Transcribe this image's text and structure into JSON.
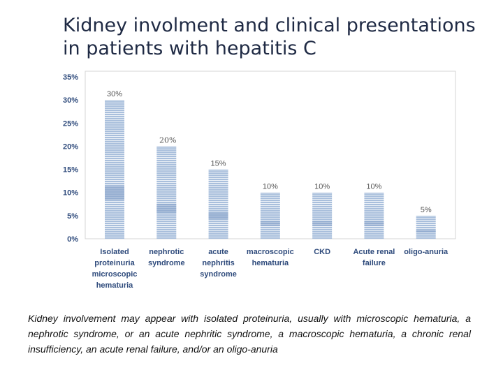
{
  "slide": {
    "title_line1": "Kidney involment and clinical presentations",
    "title_line2": "in patients with hepatitis C",
    "caption": "Kidney involvement may appear with isolated proteinuria, usually with microscopic hematuria, a nephrotic syndrome, or an acute nephritic syndrome, a macroscopic hematuria, a chronic renal insufficiency, an acute renal failure, and/or an oligo-anuria"
  },
  "colors": {
    "bar": "#a9bfdc",
    "bar_stripe": "#ffffff",
    "bar_band": "#7c99c3",
    "axis_text": "#2f4b7c",
    "label_text": "#555555",
    "plot_border": "#d6d6d6"
  },
  "chart_data": {
    "type": "bar",
    "title": "",
    "xlabel": "",
    "ylabel": "",
    "ylim": [
      0,
      35
    ],
    "yticks": [
      "0%",
      "5%",
      "10%",
      "15%",
      "20%",
      "25%",
      "30%",
      "35%"
    ],
    "grid": false,
    "categories": [
      [
        "Isolated",
        "proteinuria",
        "microscopic",
        "hematuria"
      ],
      [
        "nephrotic",
        "syndrome"
      ],
      [
        "acute",
        "nephritis",
        "syndrome"
      ],
      [
        "macroscopic",
        "hematuria"
      ],
      [
        "CKD"
      ],
      [
        "Acute renal",
        "failure"
      ],
      [
        "oligo-anuria"
      ]
    ],
    "values": [
      30,
      20,
      15,
      10,
      10,
      10,
      5
    ],
    "data_labels": [
      "30%",
      "20%",
      "15%",
      "10%",
      "10%",
      "10%",
      "5%"
    ]
  }
}
